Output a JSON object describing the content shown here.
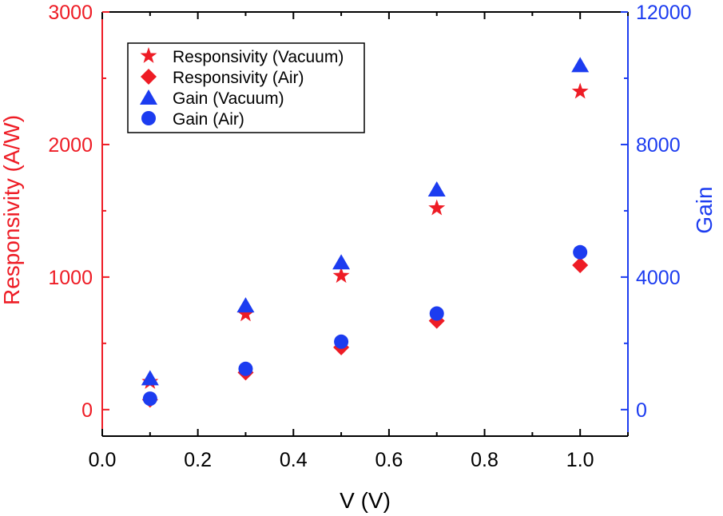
{
  "chart_data": {
    "type": "scatter",
    "title": "",
    "xlabel": "V (V)",
    "ylabel_left": "Responsivity (A/W)",
    "ylabel_right": "Gain",
    "xlim": [
      0.0,
      1.1
    ],
    "ylim_left": [
      -200,
      3000
    ],
    "ylim_right": [
      -800,
      12000
    ],
    "x_ticks": [
      "0.0",
      "0.2",
      "0.4",
      "0.6",
      "0.8",
      "1.0"
    ],
    "y_left_ticks": [
      "0",
      "1000",
      "2000",
      "3000"
    ],
    "y_right_ticks": [
      "0",
      "4000",
      "8000",
      "12000"
    ],
    "grid": false,
    "legend_position": "top-left",
    "colors": {
      "left_axis": "#ee1c25",
      "right_axis": "#1c3cf0",
      "x_axis": "#000000"
    },
    "series": [
      {
        "name": "Responsivity (Vacuum)",
        "axis": "left",
        "marker": "star",
        "color": "#ee1c25",
        "x": [
          0.1,
          0.3,
          0.5,
          0.7,
          1.0
        ],
        "y": [
          210,
          720,
          1010,
          1520,
          2400
        ]
      },
      {
        "name": "Responsivity (Air)",
        "axis": "left",
        "marker": "diamond",
        "color": "#ee1c25",
        "x": [
          0.1,
          0.3,
          0.5,
          0.7,
          1.0
        ],
        "y": [
          75,
          280,
          470,
          670,
          1090
        ]
      },
      {
        "name": "Gain (Vacuum)",
        "axis": "right",
        "marker": "triangle",
        "color": "#1c3cf0",
        "x": [
          0.1,
          0.3,
          0.5,
          0.7,
          1.0
        ],
        "y": [
          950,
          3150,
          4450,
          6650,
          10400
        ]
      },
      {
        "name": "Gain (Air)",
        "axis": "right",
        "marker": "circle",
        "color": "#1c3cf0",
        "x": [
          0.1,
          0.3,
          0.5,
          0.7,
          1.0
        ],
        "y": [
          330,
          1230,
          2050,
          2900,
          4750
        ]
      }
    ]
  }
}
